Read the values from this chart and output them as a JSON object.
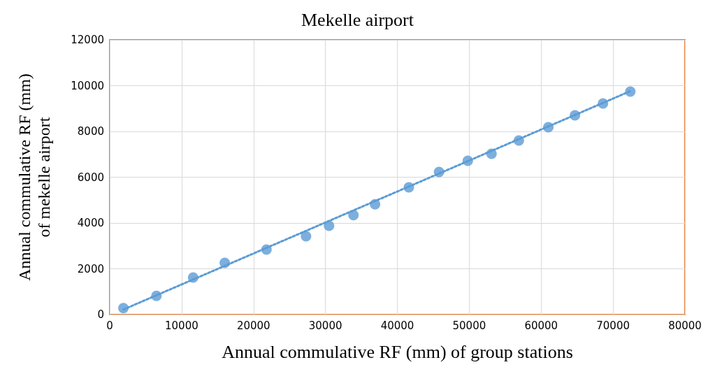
{
  "chart_data": {
    "type": "scatter",
    "title": "Mekelle airport",
    "xlabel": "Annual commulative RF (mm) of group stations",
    "ylabel": "Annual commulative RF (mm)\nof mekelle airport",
    "xlim": [
      0,
      80000
    ],
    "xticks": [
      0,
      10000,
      20000,
      30000,
      40000,
      50000,
      60000,
      70000,
      80000
    ],
    "ylim": [
      0,
      12000
    ],
    "yticks": [
      0,
      2000,
      4000,
      6000,
      8000,
      10000,
      12000
    ],
    "grid": true,
    "marker": "circle",
    "series": [
      {
        "color": "#5b9bd5",
        "x": [
          1900,
          6500,
          11600,
          16000,
          21800,
          27300,
          30500,
          33900,
          36900,
          41600,
          45800,
          49800,
          53100,
          56900,
          61000,
          64700,
          68600,
          72400
        ],
        "values": [
          280,
          820,
          1620,
          2260,
          2840,
          3420,
          3880,
          4340,
          4820,
          5560,
          6230,
          6720,
          7020,
          7600,
          8180,
          8700,
          9220,
          9740
        ]
      },
      {
        "type": "line",
        "color": "#5b9bd5",
        "line_style": "dotted",
        "marker": "none",
        "x": [
          1900,
          72400
        ],
        "values": [
          220,
          9760
        ]
      }
    ]
  }
}
